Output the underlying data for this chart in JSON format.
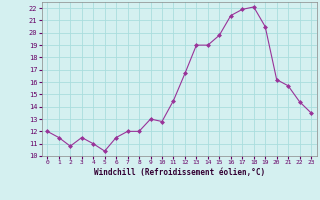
{
  "x": [
    0,
    1,
    2,
    3,
    4,
    5,
    6,
    7,
    8,
    9,
    10,
    11,
    12,
    13,
    14,
    15,
    16,
    17,
    18,
    19,
    20,
    21,
    22,
    23
  ],
  "y": [
    12.0,
    11.5,
    10.8,
    11.5,
    11.0,
    10.4,
    11.5,
    12.0,
    12.0,
    13.0,
    12.8,
    14.5,
    16.7,
    19.0,
    19.0,
    19.8,
    21.4,
    21.9,
    22.1,
    20.5,
    16.2,
    15.7,
    14.4,
    13.5
  ],
  "line_color": "#993399",
  "marker": "D",
  "marker_size": 2,
  "bg_color": "#d4f0f0",
  "grid_color": "#aadddd",
  "xlabel": "Windchill (Refroidissement éolien,°C)",
  "ylim": [
    10,
    22.5
  ],
  "xlim": [
    -0.5,
    23.5
  ],
  "yticks": [
    10,
    11,
    12,
    13,
    14,
    15,
    16,
    17,
    18,
    19,
    20,
    21,
    22
  ],
  "xticks": [
    0,
    1,
    2,
    3,
    4,
    5,
    6,
    7,
    8,
    9,
    10,
    11,
    12,
    13,
    14,
    15,
    16,
    17,
    18,
    19,
    20,
    21,
    22,
    23
  ]
}
